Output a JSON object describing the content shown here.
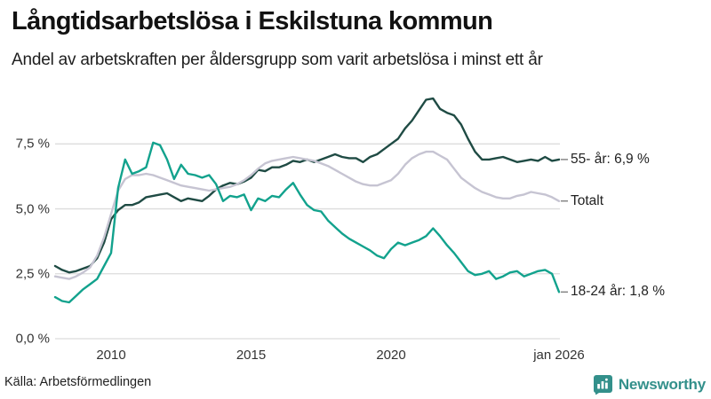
{
  "header": {
    "title": "Långtidsarbetslösa i Eskilstuna kommun",
    "subtitle": "Andel av arbetskraften per åldersgrupp som varit arbetslösa i minst ett år"
  },
  "footer": {
    "source": "Källa: Arbetsförmedlingen",
    "brand": "Newsworthy"
  },
  "colors": {
    "series_55": "#1f4b44",
    "series_total": "#c6c4d2",
    "series_1824": "#12a28d",
    "grid": "#dcdcdc",
    "connector": "#6b6b6b",
    "brand": "#33908b"
  },
  "chart_data": {
    "type": "line",
    "title": "Långtidsarbetslösa i Eskilstuna kommun",
    "subtitle": "Andel av arbetskraften per åldersgrupp som varit arbetslösa i minst ett år",
    "unit": "%",
    "grid": true,
    "legend_position": "right-end-labels",
    "x_start": 2008.0,
    "x_step": 0.25,
    "xlim": [
      2008.0,
      2026.1
    ],
    "ylim": [
      0,
      9.5
    ],
    "y_ticks": [
      {
        "label": "0,0 %",
        "value": 0
      },
      {
        "label": "2,5 %",
        "value": 2.5
      },
      {
        "label": "5,0 %",
        "value": 5.0
      },
      {
        "label": "7,5 %",
        "value": 7.5
      }
    ],
    "x_ticks": [
      {
        "label": "2010",
        "year": 2010
      },
      {
        "label": "2015",
        "year": 2015
      },
      {
        "label": "2020",
        "year": 2020
      },
      {
        "label": "jan 2026",
        "year": 2026
      }
    ],
    "series": [
      {
        "name": "55- år",
        "end_label": "55- år: 6,9 %",
        "last_value": 6.9,
        "color_key": "series_55",
        "values": [
          2.8,
          2.65,
          2.55,
          2.6,
          2.7,
          2.8,
          3.1,
          3.7,
          4.6,
          4.95,
          5.15,
          5.15,
          5.25,
          5.45,
          5.5,
          5.55,
          5.6,
          5.45,
          5.3,
          5.4,
          5.35,
          5.3,
          5.5,
          5.75,
          5.9,
          6.0,
          5.95,
          6.05,
          6.2,
          6.5,
          6.45,
          6.6,
          6.6,
          6.7,
          6.85,
          6.8,
          6.9,
          6.8,
          6.9,
          7.0,
          7.1,
          7.0,
          6.95,
          6.95,
          6.8,
          7.0,
          7.1,
          7.3,
          7.5,
          7.7,
          8.1,
          8.4,
          8.8,
          9.2,
          9.25,
          8.85,
          8.7,
          8.6,
          8.25,
          7.7,
          7.2,
          6.9,
          6.9,
          6.95,
          7.0,
          6.9,
          6.8,
          6.85,
          6.9,
          6.85,
          7.0,
          6.85,
          6.9
        ]
      },
      {
        "name": "Totalt",
        "end_label": "Totalt",
        "last_value": 5.3,
        "color_key": "series_total",
        "values": [
          2.4,
          2.35,
          2.3,
          2.4,
          2.55,
          2.75,
          3.2,
          3.9,
          4.8,
          5.7,
          6.15,
          6.3,
          6.3,
          6.35,
          6.3,
          6.2,
          6.1,
          6.0,
          5.9,
          5.85,
          5.8,
          5.75,
          5.7,
          5.75,
          5.8,
          5.85,
          5.95,
          6.1,
          6.3,
          6.55,
          6.75,
          6.85,
          6.9,
          6.95,
          7.0,
          6.95,
          6.9,
          6.85,
          6.75,
          6.65,
          6.5,
          6.35,
          6.2,
          6.05,
          5.95,
          5.9,
          5.9,
          6.0,
          6.1,
          6.35,
          6.7,
          6.95,
          7.1,
          7.2,
          7.2,
          7.05,
          6.9,
          6.55,
          6.2,
          6.0,
          5.8,
          5.65,
          5.55,
          5.45,
          5.4,
          5.4,
          5.5,
          5.55,
          5.65,
          5.6,
          5.55,
          5.45,
          5.3
        ]
      },
      {
        "name": "18-24 år",
        "end_label": "18-24 år: 1,8 %",
        "last_value": 1.8,
        "color_key": "series_1824",
        "values": [
          1.6,
          1.45,
          1.4,
          1.65,
          1.9,
          2.1,
          2.3,
          2.8,
          3.3,
          5.8,
          6.9,
          6.35,
          6.45,
          6.6,
          7.55,
          7.45,
          6.9,
          6.15,
          6.7,
          6.35,
          6.3,
          6.2,
          6.3,
          5.95,
          5.3,
          5.5,
          5.45,
          5.55,
          4.95,
          5.4,
          5.3,
          5.5,
          5.45,
          5.75,
          6.0,
          5.55,
          5.15,
          4.95,
          4.9,
          4.55,
          4.3,
          4.05,
          3.85,
          3.7,
          3.55,
          3.4,
          3.2,
          3.1,
          3.45,
          3.7,
          3.6,
          3.7,
          3.8,
          3.95,
          4.25,
          3.95,
          3.6,
          3.3,
          2.95,
          2.6,
          2.45,
          2.5,
          2.6,
          2.3,
          2.4,
          2.55,
          2.6,
          2.4,
          2.5,
          2.6,
          2.65,
          2.5,
          1.8
        ]
      }
    ]
  }
}
